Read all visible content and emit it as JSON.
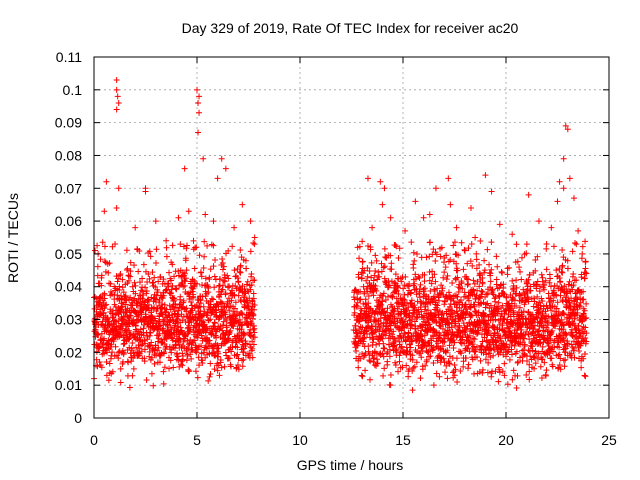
{
  "chart_data": {
    "type": "scatter",
    "title": "Day 329 of 2019, Rate Of TEC Index for receiver ac20",
    "xlabel": "GPS time / hours",
    "ylabel": "ROTI / TECUs",
    "xlim": [
      0,
      25
    ],
    "ylim": [
      0,
      0.11
    ],
    "xticks": [
      "0",
      "5",
      "10",
      "15",
      "20",
      "25"
    ],
    "yticks": [
      "0",
      "0.01",
      "0.02",
      "0.03",
      "0.04",
      "0.05",
      "0.06",
      "0.07",
      "0.08",
      "0.09",
      "0.1",
      "0.11"
    ],
    "grid": true,
    "marker": "plus",
    "color": "#ff0000",
    "segments": [
      {
        "x_start": 0.0,
        "x_end": 7.8,
        "typical_min": 0.007,
        "typical_max": 0.045
      },
      {
        "x_start": 12.6,
        "x_end": 23.9,
        "typical_min": 0.007,
        "typical_max": 0.045
      }
    ],
    "points": [
      [
        1.1,
        0.103
      ],
      [
        1.1,
        0.1
      ],
      [
        1.15,
        0.098
      ],
      [
        1.2,
        0.096
      ],
      [
        1.1,
        0.094
      ],
      [
        5.0,
        0.1
      ],
      [
        5.1,
        0.098
      ],
      [
        5.05,
        0.096
      ],
      [
        5.1,
        0.093
      ],
      [
        5.05,
        0.087
      ],
      [
        22.9,
        0.089
      ],
      [
        23.0,
        0.088
      ],
      [
        22.8,
        0.079
      ],
      [
        23.1,
        0.073
      ],
      [
        22.6,
        0.072
      ],
      [
        4.4,
        0.076
      ],
      [
        5.3,
        0.079
      ],
      [
        6.2,
        0.079
      ],
      [
        6.4,
        0.076
      ],
      [
        6.0,
        0.073
      ],
      [
        0.6,
        0.072
      ],
      [
        1.2,
        0.07
      ],
      [
        2.5,
        0.07
      ],
      [
        2.5,
        0.069
      ],
      [
        7.2,
        0.065
      ],
      [
        13.9,
        0.072
      ],
      [
        14.1,
        0.07
      ],
      [
        14.0,
        0.065
      ],
      [
        13.3,
        0.073
      ],
      [
        16.6,
        0.07
      ],
      [
        17.2,
        0.073
      ],
      [
        17.3,
        0.065
      ],
      [
        18.3,
        0.064
      ],
      [
        19.0,
        0.074
      ],
      [
        19.3,
        0.069
      ],
      [
        21.1,
        0.068
      ],
      [
        22.5,
        0.066
      ],
      [
        22.8,
        0.07
      ],
      [
        23.3,
        0.067
      ],
      [
        15.6,
        0.066
      ],
      [
        0.5,
        0.063
      ],
      [
        1.1,
        0.064
      ],
      [
        2.0,
        0.058
      ],
      [
        3.0,
        0.06
      ],
      [
        3.5,
        0.054
      ],
      [
        4.1,
        0.061
      ],
      [
        4.6,
        0.063
      ],
      [
        5.4,
        0.062
      ],
      [
        5.8,
        0.06
      ],
      [
        6.8,
        0.058
      ],
      [
        7.6,
        0.06
      ],
      [
        12.8,
        0.052
      ],
      [
        13.5,
        0.058
      ],
      [
        14.4,
        0.061
      ],
      [
        15.1,
        0.057
      ],
      [
        16.0,
        0.061
      ],
      [
        16.3,
        0.062
      ],
      [
        17.6,
        0.058
      ],
      [
        18.5,
        0.055
      ],
      [
        19.7,
        0.059
      ],
      [
        20.3,
        0.056
      ],
      [
        21.6,
        0.06
      ],
      [
        22.2,
        0.058
      ],
      [
        23.5,
        0.057
      ],
      [
        23.7,
        0.05
      ],
      [
        0.2,
        0.05
      ],
      [
        0.1,
        0.016
      ],
      [
        0.0,
        0.012
      ],
      [
        7.8,
        0.055
      ],
      [
        23.9,
        0.044
      ]
    ]
  }
}
